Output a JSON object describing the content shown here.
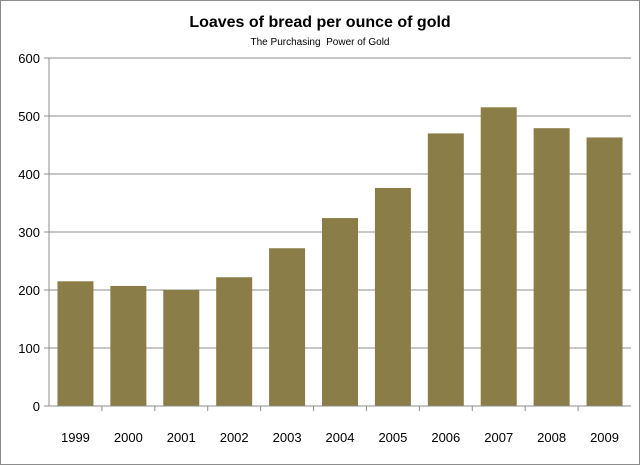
{
  "chart_data": {
    "type": "bar",
    "title": "Loaves of bread per ounce of gold",
    "subtitle": "The Purchasing  Power of Gold",
    "categories": [
      "1999",
      "2000",
      "2001",
      "2002",
      "2003",
      "2004",
      "2005",
      "2006",
      "2007",
      "2008",
      "2009"
    ],
    "values": [
      215,
      207,
      200,
      222,
      272,
      324,
      376,
      470,
      515,
      479,
      463
    ],
    "ylim": [
      0,
      600
    ],
    "yticks": [
      0,
      100,
      200,
      300,
      400,
      500,
      600
    ],
    "grid": true,
    "legend": "none",
    "bar_color": "#8b7d47",
    "grid_color": "#8c8c8c"
  }
}
